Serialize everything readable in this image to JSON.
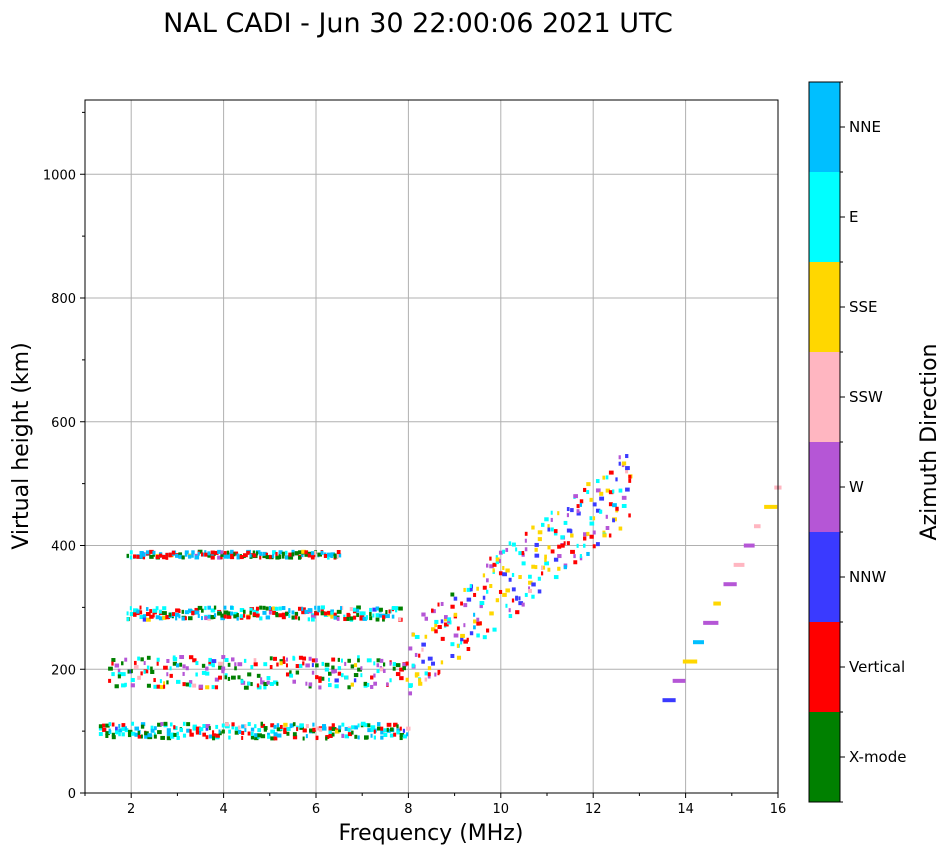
{
  "chart_data": {
    "type": "scatter",
    "title": "NAL CADI - Jun 30 22:00:06 2021 UTC",
    "xlabel": "Frequency (MHz)",
    "ylabel": "Virtual height (km)",
    "xlim": [
      1.0,
      16.0
    ],
    "ylim": [
      0,
      1120
    ],
    "x_ticks": [
      2,
      4,
      6,
      8,
      10,
      12,
      14,
      16
    ],
    "y_ticks": [
      0,
      200,
      400,
      600,
      800,
      1000
    ],
    "grid": true,
    "colorbar": {
      "label": "Azimuth Direction",
      "categories": [
        {
          "name": "X-mode",
          "color": "#008000"
        },
        {
          "name": "Vertical",
          "color": "#ff0000"
        },
        {
          "name": "NNW",
          "color": "#3a3aff"
        },
        {
          "name": "W",
          "color": "#b556d6"
        },
        {
          "name": "SSW",
          "color": "#ffb6c1"
        },
        {
          "name": "SSE",
          "color": "#ffd700"
        },
        {
          "name": "E",
          "color": "#00ffff"
        },
        {
          "name": "NNE",
          "color": "#00bfff"
        }
      ]
    },
    "traces": [
      {
        "name": "E region trace (~100 km)",
        "f_start": 1.3,
        "f_end": 8.0,
        "h_base": 100,
        "h_spread": 12,
        "dominant": [
          "Vertical",
          "X-mode",
          "NNE",
          "E"
        ]
      },
      {
        "name": "F-layer first hop (~200 km)",
        "f_start": 1.5,
        "f_end": 8.0,
        "h_base": 195,
        "h_spread": 25,
        "dominant": [
          "Vertical",
          "X-mode",
          "W",
          "E"
        ]
      },
      {
        "name": "Second hop (~290 km)",
        "f_start": 1.9,
        "f_end": 7.8,
        "h_base": 290,
        "h_spread": 10,
        "dominant": [
          "Vertical",
          "X-mode",
          "E",
          "NNE"
        ]
      },
      {
        "name": "Third hop (~385 km)",
        "f_start": 1.9,
        "f_end": 6.5,
        "h_base": 385,
        "h_spread": 5,
        "dominant": [
          "Vertical",
          "X-mode",
          "NNE"
        ]
      },
      {
        "name": "Rising trace above 8 MHz",
        "f_start": 8.0,
        "f_end": 12.8,
        "h_base": 215,
        "h_end": 500,
        "h_spread": 60,
        "dominant": [
          "SSE",
          "E",
          "NNW",
          "W",
          "Vertical"
        ]
      },
      {
        "name": "Scattered echoes 13-16 MHz",
        "f_start": 13.5,
        "f_end": 16.0,
        "h_base": 150,
        "h_end": 505,
        "h_spread": 0,
        "dominant": [
          "W",
          "SSE",
          "SSW",
          "NNW"
        ]
      }
    ]
  }
}
